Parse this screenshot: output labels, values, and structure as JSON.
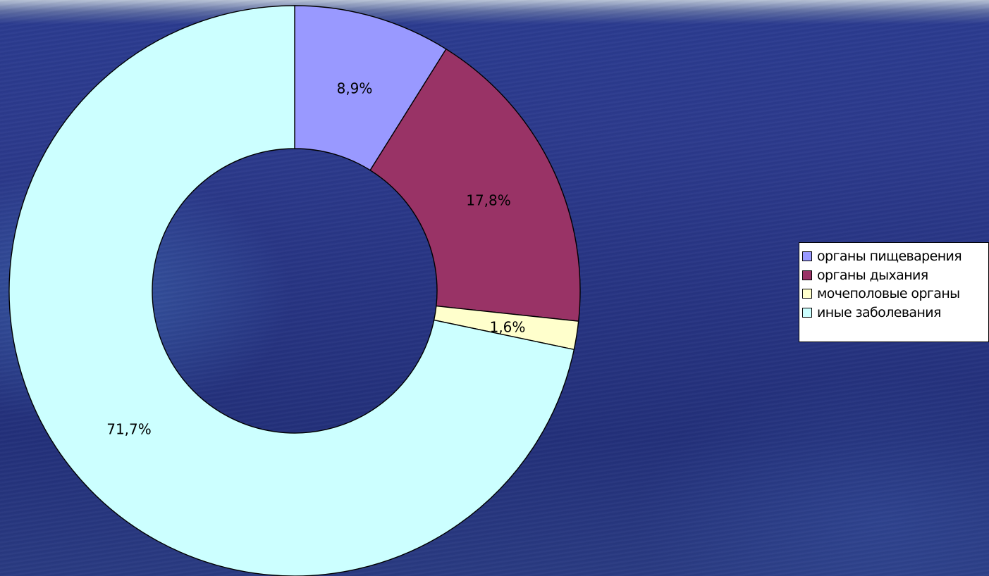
{
  "chart_data": {
    "type": "donut",
    "title": "",
    "categories": [
      "органы пищеварения",
      "органы дыхания",
      "мочеполовые органы",
      "иные заболевания"
    ],
    "values": [
      8.9,
      17.8,
      1.6,
      71.7
    ],
    "value_labels": [
      "8,9%",
      "17,8%",
      "1,6%",
      "71,7%"
    ],
    "colors": [
      "#9999ff",
      "#993366",
      "#ffffcc",
      "#ccffff"
    ],
    "start_angle": "12 o'clock",
    "direction": "clockwise",
    "legend_position": "right"
  }
}
